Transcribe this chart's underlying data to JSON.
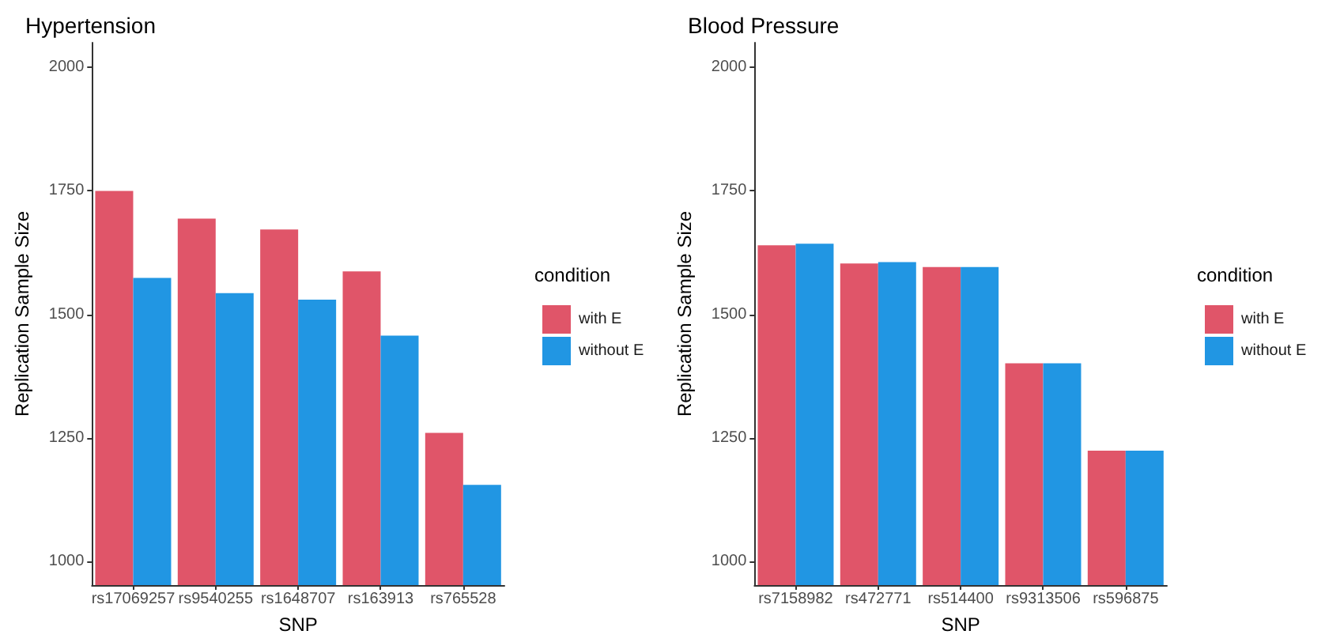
{
  "chart_data": [
    {
      "type": "bar",
      "title": "Hypertension",
      "xlabel": "SNP",
      "ylabel": "Replication Sample Size",
      "legend_title": "condition",
      "legend": "right",
      "grid": false,
      "categories": [
        "rs17069257",
        "rs9540255",
        "rs1648707",
        "rs163913",
        "rs765528"
      ],
      "series": [
        {
          "name": "with E",
          "color": "#e05569",
          "values": [
            1750,
            1694,
            1672,
            1587,
            1260
          ]
        },
        {
          "name": "without E",
          "color": "#2196e3",
          "values": [
            1574,
            1543,
            1530,
            1457,
            1155
          ]
        }
      ],
      "ylim": [
        952,
        2050
      ],
      "yticks": [
        1000,
        1250,
        1500,
        1750,
        2000
      ]
    },
    {
      "type": "bar",
      "title": "Blood Pressure",
      "xlabel": "SNP",
      "ylabel": "Replication Sample Size",
      "legend_title": "condition",
      "legend": "right",
      "grid": false,
      "categories": [
        "rs7158982",
        "rs472771",
        "rs514400",
        "rs9313506",
        "rs596875"
      ],
      "series": [
        {
          "name": "with E",
          "color": "#e05569",
          "values": [
            1640,
            1603,
            1596,
            1401,
            1224
          ]
        },
        {
          "name": "without E",
          "color": "#2196e3",
          "values": [
            1643,
            1606,
            1596,
            1401,
            1224
          ]
        }
      ],
      "ylim": [
        952,
        2050
      ],
      "yticks": [
        1000,
        1250,
        1500,
        1750,
        2000
      ]
    }
  ]
}
